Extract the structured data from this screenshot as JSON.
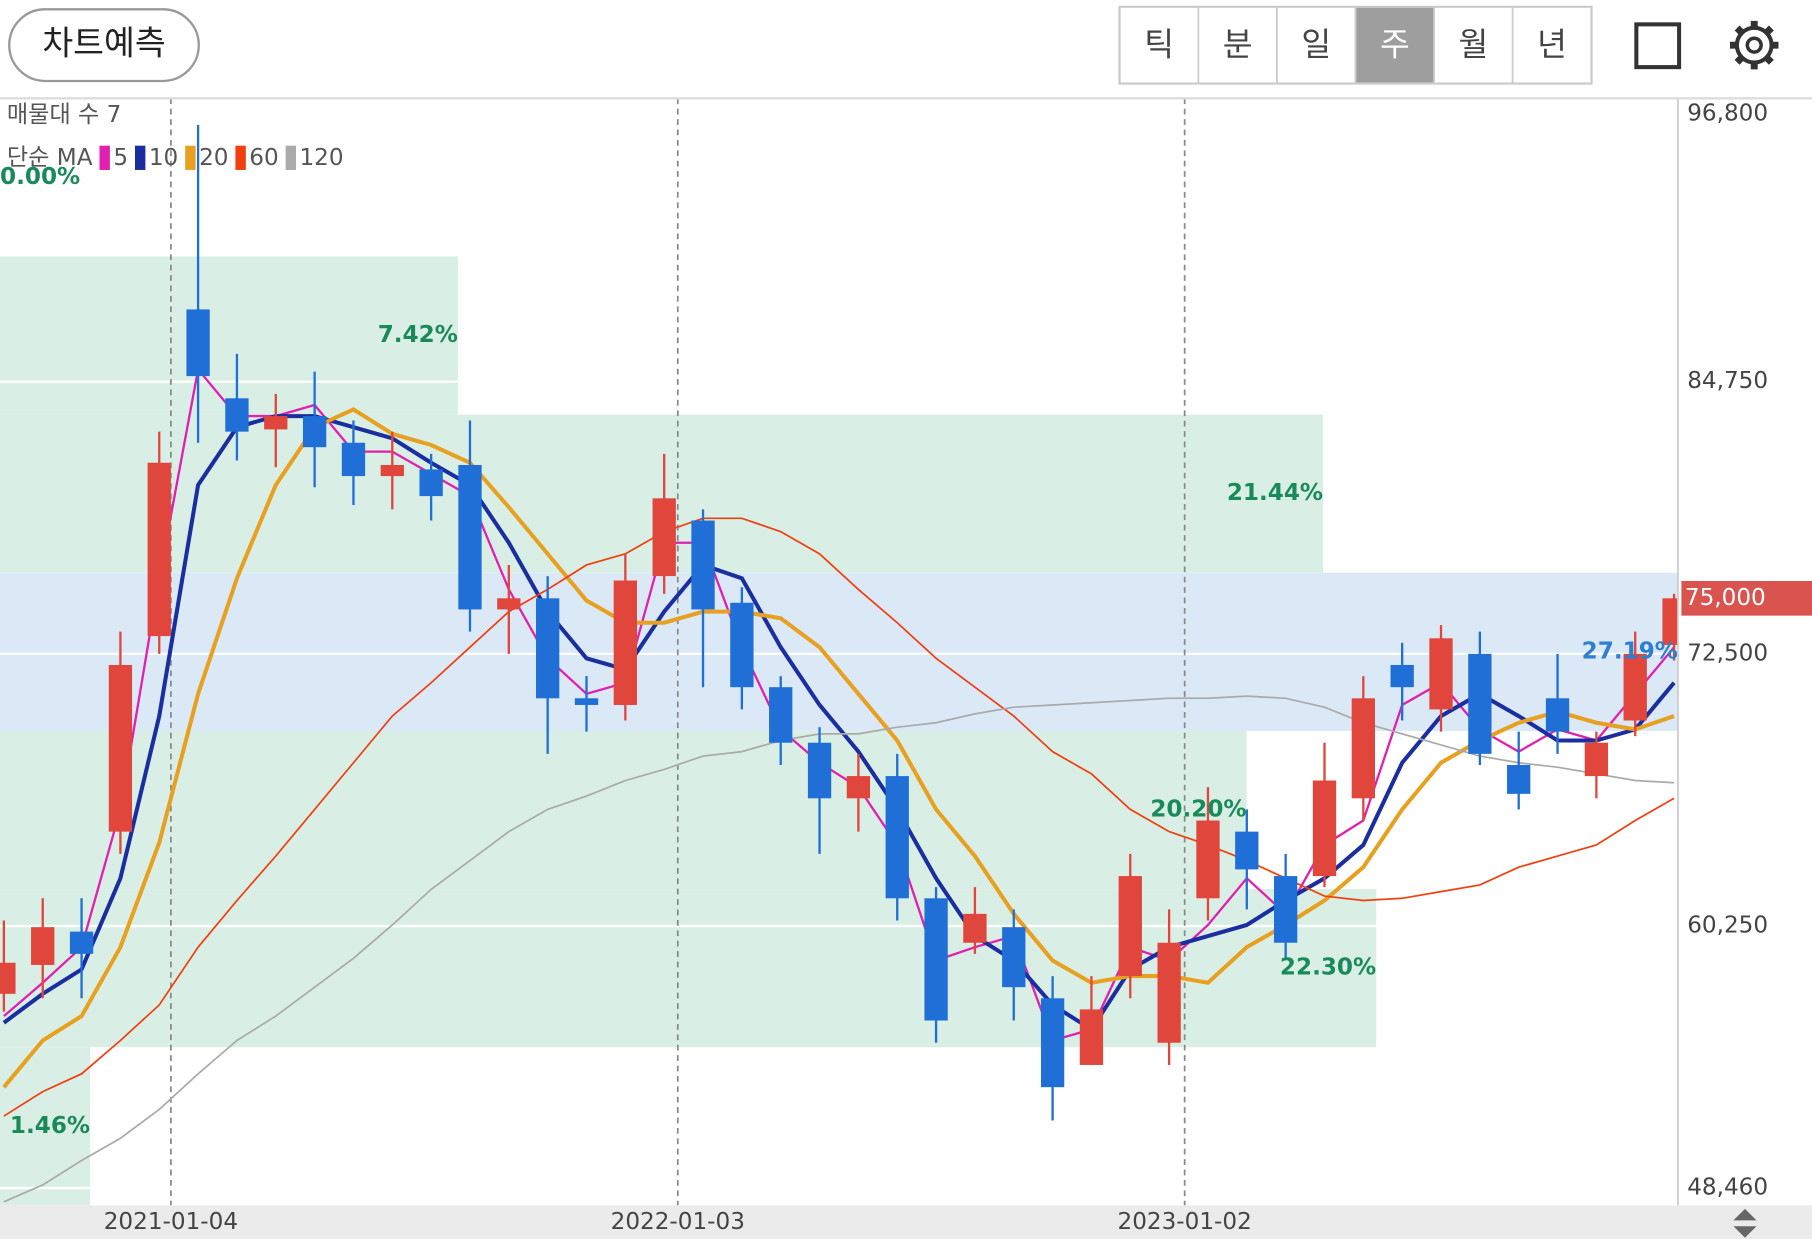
{
  "toolbar": {
    "predict_button": "차트예측",
    "tabs": [
      "틱",
      "분",
      "일",
      "주",
      "월",
      "년"
    ],
    "selected_tab": 3
  },
  "chart_data": {
    "type": "candlestick",
    "indicator_title": "매물대 수 7",
    "ma_label": "단순 MA",
    "ylim": [
      47680,
      97500
    ],
    "yticks": [
      {
        "value": 96800,
        "label": "96,800"
      },
      {
        "value": 84750,
        "label": "84,750"
      },
      {
        "value": 72500,
        "label": "72,500"
      },
      {
        "value": 60250,
        "label": "60,250"
      },
      {
        "value": 48460,
        "label": "48,460"
      }
    ],
    "xlim": [
      -0.1,
      43.1
    ],
    "xticks": [
      {
        "value": 4.3,
        "label": "2021-01-04"
      },
      {
        "value": 17.35,
        "label": "2022-01-03"
      },
      {
        "value": 30.4,
        "label": "2023-01-02"
      }
    ],
    "up_color": "#e0463c",
    "down_color": "#1f6fd6",
    "candles": [
      [
        57200,
        60500,
        56400,
        58600
      ],
      [
        58500,
        61500,
        57000,
        60200
      ],
      [
        60000,
        61500,
        57000,
        59000
      ],
      [
        64500,
        73500,
        63500,
        72000
      ],
      [
        73300,
        82500,
        72500,
        81100
      ],
      [
        88000,
        96300,
        82000,
        85000
      ],
      [
        84000,
        86000,
        81200,
        82500
      ],
      [
        82600,
        84200,
        80900,
        83200
      ],
      [
        83200,
        85200,
        80000,
        81800
      ],
      [
        82000,
        83000,
        79200,
        80500
      ],
      [
        80500,
        82500,
        79000,
        81000
      ],
      [
        80800,
        81500,
        78500,
        79600
      ],
      [
        81000,
        83000,
        73500,
        74500
      ],
      [
        74500,
        76500,
        72500,
        75000
      ],
      [
        75000,
        76000,
        68000,
        70500
      ],
      [
        70500,
        71500,
        69000,
        70200
      ],
      [
        70200,
        77000,
        69500,
        75800
      ],
      [
        76000,
        81500,
        75200,
        79500
      ],
      [
        78500,
        79000,
        71000,
        74500
      ],
      [
        74800,
        75500,
        70000,
        71000
      ],
      [
        71000,
        71500,
        67500,
        68500
      ],
      [
        68500,
        69200,
        63500,
        66000
      ],
      [
        66000,
        68000,
        64500,
        67000
      ],
      [
        67000,
        68000,
        60500,
        61500
      ],
      [
        61500,
        62000,
        55000,
        56000
      ],
      [
        59500,
        62000,
        59000,
        60800
      ],
      [
        60200,
        61000,
        56000,
        57500
      ],
      [
        57000,
        58000,
        51500,
        53000
      ],
      [
        54000,
        58000,
        54000,
        56500
      ],
      [
        58000,
        63500,
        57000,
        62500
      ],
      [
        55000,
        61000,
        54000,
        59500
      ],
      [
        61500,
        66500,
        60500,
        65000
      ],
      [
        64500,
        65500,
        61000,
        62800
      ],
      [
        62500,
        63500,
        58800,
        59500
      ],
      [
        62500,
        68500,
        62000,
        66800
      ],
      [
        66000,
        71500,
        65000,
        70500
      ],
      [
        72000,
        73000,
        69500,
        71000
      ],
      [
        70000,
        73800,
        69000,
        73200
      ],
      [
        72500,
        73500,
        67500,
        68000
      ],
      [
        67500,
        69000,
        65500,
        66200
      ],
      [
        70500,
        72500,
        68000,
        69000
      ],
      [
        67000,
        69000,
        66000,
        68500
      ],
      [
        69500,
        73500,
        68800,
        72500
      ],
      [
        72900,
        75200,
        72200,
        75000
      ]
    ],
    "current_price": {
      "value": 75000,
      "label": "75,000"
    },
    "series": [
      {
        "name": "5",
        "color": "#e020b0",
        "values": [
          56200,
          57700,
          59300,
          65500,
          75900,
          85300,
          83200,
          83200,
          83700,
          81600,
          81600,
          80600,
          79600,
          75400,
          72300,
          70700,
          71200,
          77500,
          77500,
          72800,
          69100,
          67600,
          66500,
          63900,
          58700,
          59300,
          59800,
          55100,
          55600,
          59300,
          58700,
          60300,
          62400,
          60800,
          63900,
          65000,
          70200,
          71200,
          69100,
          68100,
          69100,
          68600,
          70700,
          72800
        ]
      },
      {
        "name": "10",
        "color": "#1a2ea0",
        "values": [
          55900,
          57200,
          58300,
          62400,
          69700,
          80100,
          82700,
          83200,
          83200,
          82700,
          82200,
          81100,
          80100,
          77500,
          74400,
          72300,
          71800,
          74400,
          76500,
          75900,
          72800,
          70200,
          68100,
          65500,
          62400,
          59800,
          58700,
          56700,
          55600,
          58300,
          59300,
          59800,
          60300,
          61400,
          62400,
          63900,
          67600,
          69700,
          70700,
          69700,
          68600,
          68600,
          69100,
          71200
        ]
      },
      {
        "name": "20",
        "color": "#e8a020",
        "values": [
          53000,
          55100,
          56200,
          59300,
          64000,
          70700,
          75900,
          80100,
          82700,
          83500,
          82400,
          81900,
          81100,
          79100,
          77000,
          74900,
          73900,
          73900,
          74400,
          74400,
          74100,
          72800,
          70700,
          68600,
          65500,
          63400,
          60800,
          58700,
          57700,
          58000,
          58000,
          57700,
          59300,
          60300,
          61400,
          62900,
          65500,
          67600,
          68600,
          69400,
          69900,
          69400,
          69100,
          69700
        ]
      },
      {
        "name": "60",
        "color": "#f04010",
        "values": [
          51700,
          52800,
          53600,
          55100,
          56700,
          59300,
          61400,
          63400,
          65500,
          67600,
          69700,
          71200,
          72800,
          74400,
          75400,
          76500,
          77000,
          78000,
          78600,
          78600,
          78000,
          77000,
          75400,
          73900,
          72300,
          71000,
          69700,
          68100,
          67100,
          65500,
          64500,
          63900,
          63200,
          62400,
          61600,
          61400,
          61500,
          61800,
          62100,
          62900,
          63400,
          63900,
          65000,
          66000
        ]
      },
      {
        "name": "120",
        "color": "#aaaaaa",
        "values": [
          47840,
          48600,
          49700,
          50700,
          52000,
          53600,
          55100,
          56200,
          57500,
          58800,
          60300,
          61900,
          63200,
          64500,
          65500,
          66100,
          66800,
          67300,
          67900,
          68100,
          68600,
          68900,
          68900,
          69200,
          69400,
          69800,
          70100,
          70200,
          70300,
          70400,
          70500,
          70500,
          70600,
          70500,
          70100,
          69400,
          68900,
          68400,
          67900,
          67600,
          67400,
          67100,
          66800,
          66700
        ]
      }
    ],
    "volume_profile": {
      "bins": [
        97500,
        90383,
        83266,
        76149,
        69031,
        61914,
        54797,
        47680
      ],
      "values": [
        0,
        7.42,
        21.44,
        27.19,
        20.2,
        22.3,
        1.46
      ],
      "value_labels": [
        "0.00%",
        "7.42%",
        "21.44%",
        "27.19%",
        "20.20%",
        "22.30%",
        "1.46%"
      ]
    }
  }
}
